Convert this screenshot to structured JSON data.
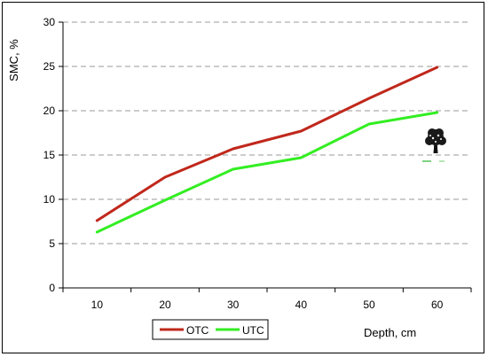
{
  "chart_data": {
    "type": "line",
    "title": "",
    "xlabel": "Depth, cm",
    "ylabel": "SMC, %",
    "x": [
      10,
      20,
      30,
      40,
      50,
      60
    ],
    "ylim": [
      0,
      30
    ],
    "yticks": [
      0,
      5,
      10,
      15,
      20,
      25,
      30
    ],
    "grid": "horizontal dashed",
    "legend_position": "bottom-center",
    "series": [
      {
        "name": "OTC",
        "color": "#c0281c",
        "values": [
          7.6,
          12.5,
          15.7,
          17.7,
          21.4,
          24.9
        ]
      },
      {
        "name": "UTC",
        "color": "#33ee22",
        "values": [
          6.3,
          9.9,
          13.4,
          14.7,
          18.5,
          19.8
        ]
      }
    ]
  },
  "icons": {
    "tree": "tree-icon"
  }
}
